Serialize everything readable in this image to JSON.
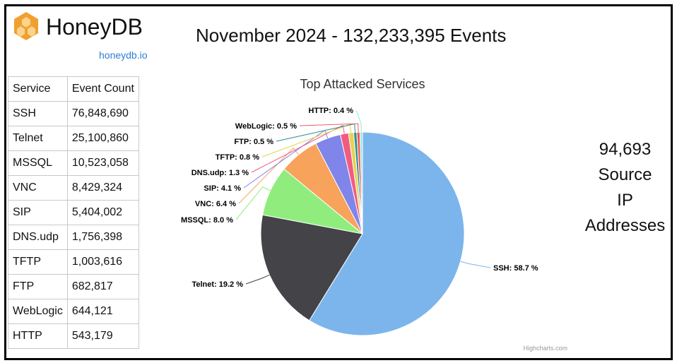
{
  "brand": {
    "name": "HoneyDB",
    "link": "honeydb.io",
    "logo_icon": "honeycomb-logo-icon",
    "logo_color": "#f0a030"
  },
  "headline": "November 2024 - 132,233,395 Events",
  "table": {
    "headers": [
      "Service",
      "Event Count"
    ],
    "rows": [
      [
        "SSH",
        "76,848,690"
      ],
      [
        "Telnet",
        "25,100,860"
      ],
      [
        "MSSQL",
        "10,523,058"
      ],
      [
        "VNC",
        "8,429,324"
      ],
      [
        "SIP",
        "5,404,002"
      ],
      [
        "DNS.udp",
        "1,756,398"
      ],
      [
        "TFTP",
        "1,003,616"
      ],
      [
        "FTP",
        "682,817"
      ],
      [
        "WebLogic",
        "644,121"
      ],
      [
        "HTTP",
        "543,179"
      ]
    ]
  },
  "stats": {
    "value": "94,693",
    "line1": "Source",
    "line2": "IP",
    "line3": "Addresses"
  },
  "chart_data": {
    "type": "pie",
    "title": "Top Attacked Services",
    "credit": "Highcharts.com",
    "slices": [
      {
        "name": "SSH",
        "value": 58.7,
        "label": "SSH: 58.7 %",
        "color": "#7cb5ec"
      },
      {
        "name": "Telnet",
        "value": 19.2,
        "label": "Telnet: 19.2 %",
        "color": "#434348"
      },
      {
        "name": "MSSQL",
        "value": 8.0,
        "label": "MSSQL: 8.0 %",
        "color": "#90ed7d"
      },
      {
        "name": "VNC",
        "value": 6.4,
        "label": "VNC: 6.4 %",
        "color": "#f7a35c"
      },
      {
        "name": "SIP",
        "value": 4.1,
        "label": "SIP: 4.1 %",
        "color": "#8085e9"
      },
      {
        "name": "DNS.udp",
        "value": 1.3,
        "label": "DNS.udp: 1.3 %",
        "color": "#f15c80"
      },
      {
        "name": "TFTP",
        "value": 0.8,
        "label": "TFTP: 0.8 %",
        "color": "#e4d354"
      },
      {
        "name": "FTP",
        "value": 0.5,
        "label": "FTP: 0.5 %",
        "color": "#2b908f"
      },
      {
        "name": "WebLogic",
        "value": 0.5,
        "label": "WebLogic: 0.5 %",
        "color": "#f45b5b"
      },
      {
        "name": "HTTP",
        "value": 0.4,
        "label": "HTTP: 0.4 %",
        "color": "#91e8e1"
      }
    ]
  }
}
